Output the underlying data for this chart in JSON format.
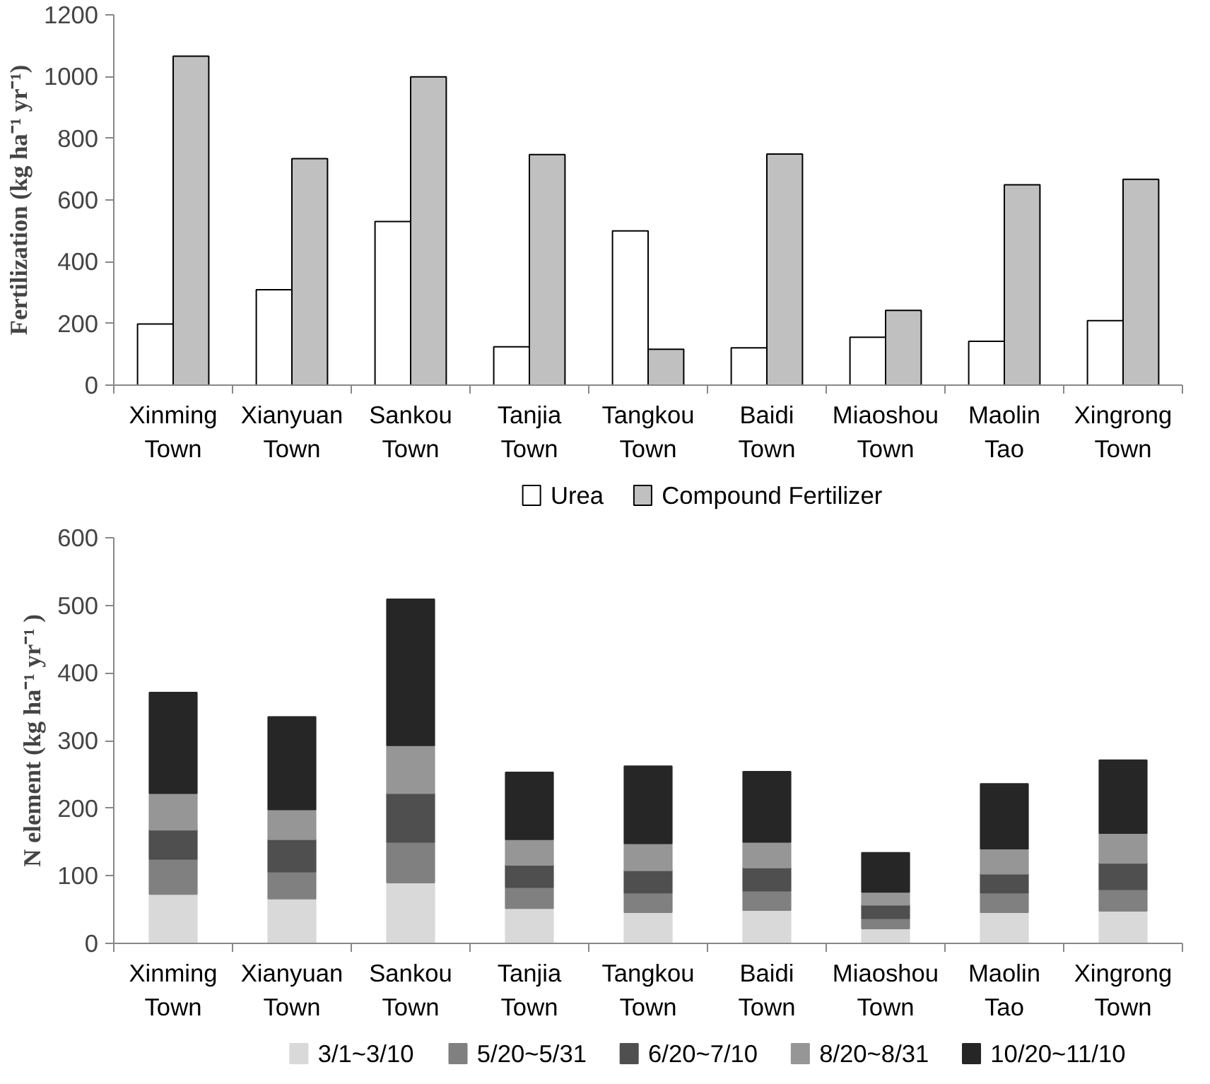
{
  "chart_data": [
    {
      "type": "bar",
      "ylabel": "Fertilization (kg ha⁻¹ yr⁻¹)",
      "categories": [
        "Xinming Town",
        "Xianyuan Town",
        "Sankou Town",
        "Tanjia Town",
        "Tangkou Town",
        "Baidi Town",
        "Miaoshou Town",
        "Maolin Tao",
        "Xingrong Town"
      ],
      "series": [
        {
          "name": "Urea",
          "color": "#ffffff",
          "values": [
            198,
            309,
            530,
            124,
            500,
            121,
            155,
            142,
            209
          ]
        },
        {
          "name": "Compound Fertilizer",
          "color": "#c0c0c0",
          "values": [
            1066,
            734,
            999,
            747,
            116,
            749,
            242,
            649,
            667
          ]
        }
      ],
      "ylim": [
        0,
        1200
      ],
      "yticks": [
        0,
        200,
        400,
        600,
        800,
        1000,
        1200
      ],
      "grid": false,
      "legend": "bottom"
    },
    {
      "type": "bar",
      "stacked": true,
      "ylabel": "N element (kg ha⁻¹ yr⁻¹ )",
      "categories": [
        "Xinming Town",
        "Xianyuan Town",
        "Sankou Town",
        "Tanjia Town",
        "Tangkou Town",
        "Baidi Town",
        "Miaoshou Town",
        "Maolin Tao",
        "Xingrong Town"
      ],
      "series": [
        {
          "name": "3/1~3/10",
          "color": "#d9d9d9",
          "values": [
            73,
            66,
            90,
            52,
            46,
            49,
            22,
            46,
            48
          ]
        },
        {
          "name": "5/20~5/31",
          "color": "#808080",
          "values": [
            52,
            40,
            60,
            31,
            29,
            29,
            15,
            29,
            32
          ]
        },
        {
          "name": "6/20~7/10",
          "color": "#4f4f4f",
          "values": [
            43,
            48,
            72,
            33,
            33,
            34,
            20,
            28,
            39
          ]
        },
        {
          "name": "8/20~8/31",
          "color": "#969696",
          "values": [
            54,
            44,
            71,
            38,
            40,
            38,
            19,
            37,
            44
          ]
        },
        {
          "name": "10/20~11/10",
          "color": "#262626",
          "values": [
            149,
            137,
            216,
            99,
            114,
            104,
            58,
            96,
            108
          ]
        }
      ],
      "ylim": [
        0,
        600
      ],
      "yticks": [
        0,
        100,
        200,
        300,
        400,
        500,
        600
      ],
      "grid": false,
      "legend": "bottom"
    }
  ]
}
